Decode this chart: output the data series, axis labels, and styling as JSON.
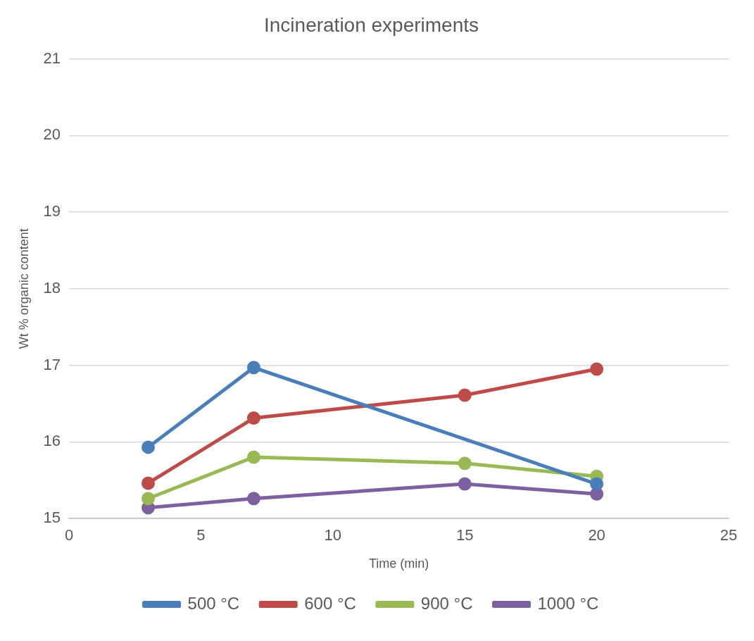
{
  "chart_data": {
    "type": "line",
    "title": "Incineration experiments",
    "xlabel": "Time (min)",
    "ylabel": "Wt % organic content",
    "x": [
      3,
      7,
      15,
      20
    ],
    "series": [
      {
        "name": "500 °C",
        "color": "#4a7ebb",
        "x": [
          3,
          7,
          20
        ],
        "values": [
          15.93,
          16.97,
          15.45
        ]
      },
      {
        "name": "600 °C",
        "color": "#be4b48",
        "values": [
          15.46,
          16.31,
          16.61,
          16.95
        ]
      },
      {
        "name": "900 °C",
        "color": "#98b954",
        "values": [
          15.26,
          15.8,
          15.72,
          15.55
        ]
      },
      {
        "name": "1000 °C",
        "color": "#7d60a0",
        "values": [
          15.14,
          15.26,
          15.45,
          15.32
        ]
      }
    ],
    "xlim": [
      0,
      25
    ],
    "xticks": [
      0,
      5,
      10,
      15,
      20,
      25
    ],
    "ylim": [
      15,
      21
    ],
    "yticks": [
      15,
      16,
      17,
      18,
      19,
      20,
      21
    ],
    "grid": "y",
    "legend": "bottom",
    "marker": "circle",
    "line_style": "solid"
  }
}
